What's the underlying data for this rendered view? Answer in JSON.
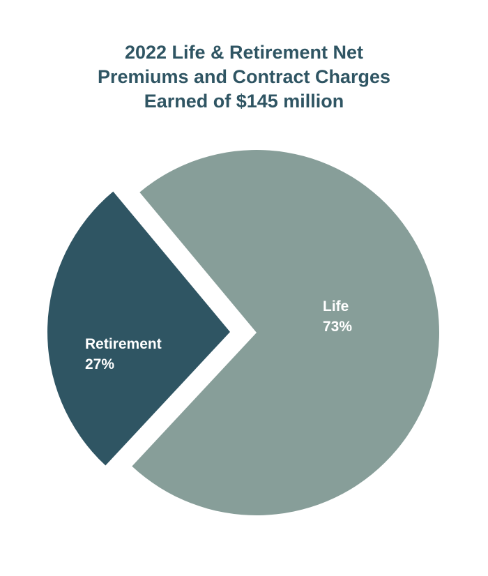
{
  "chart_data": {
    "type": "pie",
    "title_lines": [
      "2022 Life & Retirement Net",
      "Premiums and Contract Charges",
      "Earned of $145 million"
    ],
    "slices": [
      {
        "name": "Life",
        "value": 73,
        "label": "Life",
        "value_label": "73%",
        "color": "#879e99",
        "exploded": false
      },
      {
        "name": "Retirement",
        "value": 27,
        "label": "Retirement",
        "value_label": "27%",
        "color": "#2f5563",
        "exploded": true
      }
    ],
    "legend": "none"
  }
}
